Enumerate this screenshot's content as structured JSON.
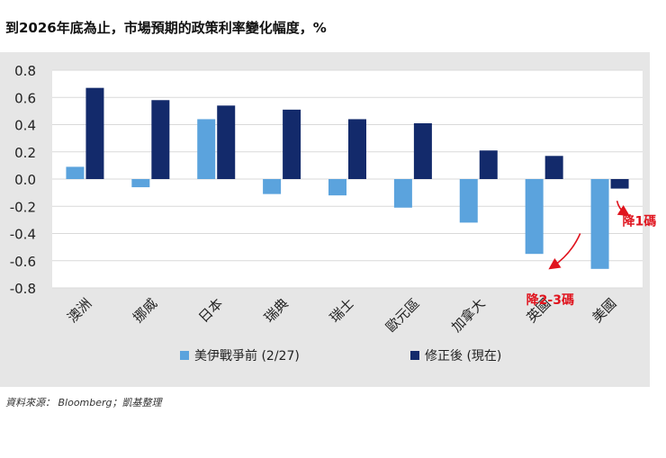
{
  "title": "到2026年底為止，市場預期的政策利率變化幅度，%",
  "source": "資料來源： Bloomberg；凱基整理",
  "chart_data": {
    "type": "bar",
    "categories": [
      "澳洲",
      "挪威",
      "日本",
      "瑞典",
      "瑞士",
      "歐元區",
      "加拿大",
      "英國",
      "美國"
    ],
    "series": [
      {
        "name": "美伊戰爭前 (2/27)",
        "color": "#5ba3dd",
        "values": [
          0.09,
          -0.06,
          0.44,
          -0.11,
          -0.12,
          -0.21,
          -0.32,
          -0.55,
          -0.66
        ]
      },
      {
        "name": "修正後 (現在)",
        "color": "#132a6b",
        "values": [
          0.67,
          0.58,
          0.54,
          0.51,
          0.44,
          0.41,
          0.21,
          0.17,
          -0.07
        ]
      }
    ],
    "ylim": [
      -0.8,
      0.8
    ],
    "yticks": [
      "0.8",
      "0.6",
      "0.4",
      "0.2",
      "0.0",
      "-0.2",
      "-0.4",
      "-0.6",
      "-0.8"
    ],
    "legend": "bottom",
    "grid": true,
    "annotations": [
      {
        "text": "降1碼",
        "color": "#e0141e"
      },
      {
        "text": "降2-3碼",
        "color": "#e0141e"
      }
    ]
  }
}
